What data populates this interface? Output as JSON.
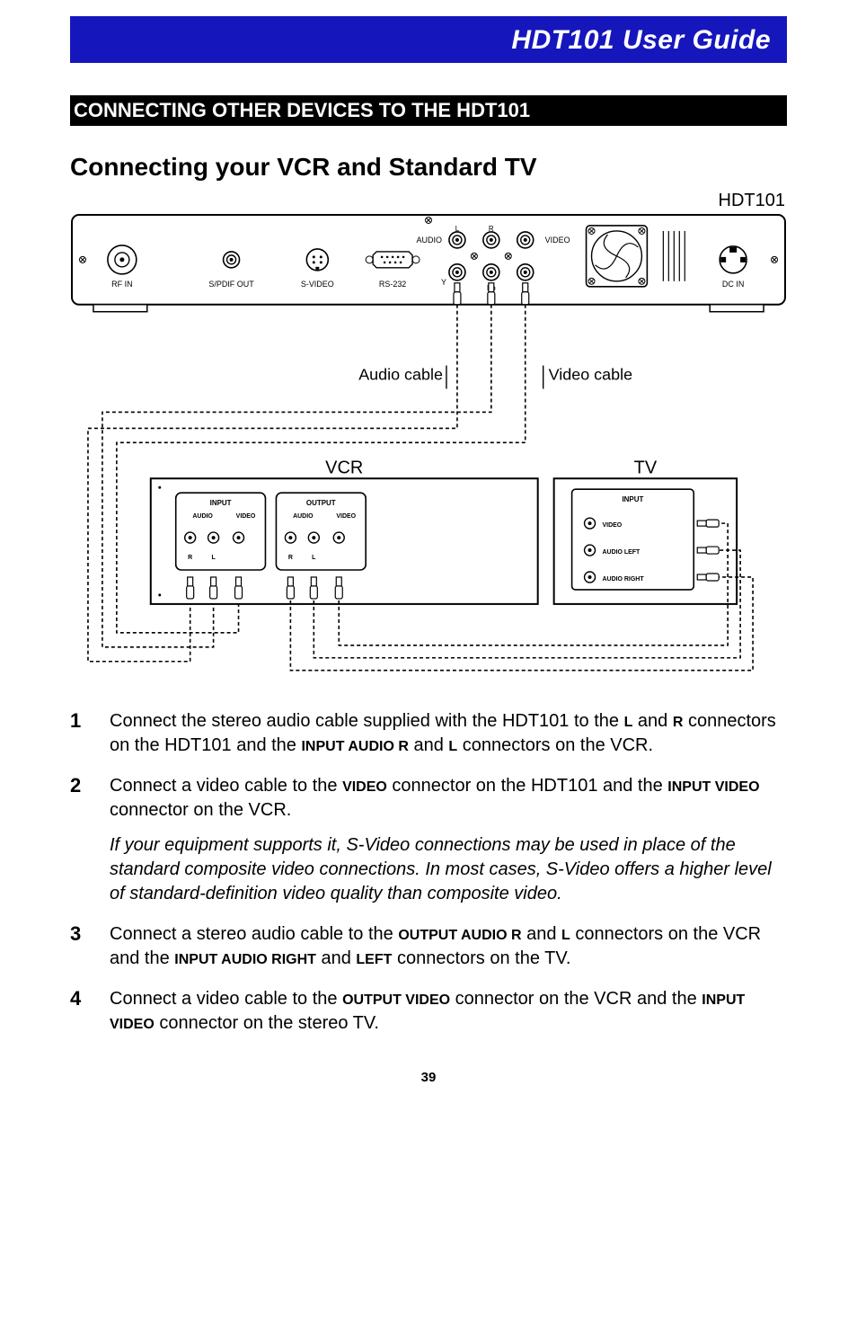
{
  "banner": {
    "title": "HDT101 User Guide"
  },
  "section_bar": "CONNECTING OTHER DEVICES TO THE HDT101",
  "subsection": "Connecting your VCR and Standard TV",
  "diagram": {
    "device_label": "HDT101",
    "rear_panel": {
      "ports": {
        "rf_in": "RF IN",
        "spdif_out": "S/PDIF OUT",
        "svideo": "S-VIDEO",
        "rs232": "RS-232",
        "audio": "AUDIO",
        "audio_l": "L",
        "audio_r": "R",
        "video": "VIDEO",
        "y": "Y",
        "pb": "Pb",
        "pr": "Pr",
        "dc_in": "DC IN"
      }
    },
    "cables": {
      "audio": "Audio cable",
      "video": "Video cable"
    },
    "vcr": {
      "label": "VCR",
      "input": {
        "title": "INPUT",
        "audio": "AUDIO",
        "video": "VIDEO",
        "r": "R",
        "l": "L"
      },
      "output": {
        "title": "OUTPUT",
        "audio": "AUDIO",
        "video": "VIDEO",
        "r": "R",
        "l": "L"
      }
    },
    "tv": {
      "label": "TV",
      "input": {
        "title": "INPUT",
        "video": "VIDEO",
        "audio_left": "AUDIO LEFT",
        "audio_right": "AUDIO RIGHT"
      }
    },
    "style": {
      "stroke": "#000000",
      "stroke_width": 1.6,
      "dash": "4 3",
      "bg": "#ffffff",
      "panel_fill": "#ffffff",
      "text_color": "#000000",
      "font_small": 9,
      "font_tiny": 7,
      "font_label": 18
    }
  },
  "steps": [
    {
      "parts": [
        {
          "t": "Connect the stereo audio cable supplied with the HDT101 to the "
        },
        {
          "sc": "L"
        },
        {
          "t": " and "
        },
        {
          "sc": "R"
        },
        {
          "t": " connectors on the HDT101 and the "
        },
        {
          "sc": "INPUT AUDIO R"
        },
        {
          "t": " and "
        },
        {
          "sc": "L"
        },
        {
          "t": " connectors on the VCR."
        }
      ]
    },
    {
      "parts": [
        {
          "t": "Connect a video cable to the "
        },
        {
          "sc": "VIDEO"
        },
        {
          "t": " connector on the HDT101 and the "
        },
        {
          "sc": "INPUT VIDEO"
        },
        {
          "t": " connector on the VCR."
        }
      ],
      "note": "If your equipment supports it, S-Video connections may be used in place of the standard composite video connections.  In most cases, S-Video offers a higher level of standard-definition video quality than composite video."
    },
    {
      "parts": [
        {
          "t": "Connect a stereo audio cable to the "
        },
        {
          "sc": "OUTPUT AUDIO R"
        },
        {
          "t": " and "
        },
        {
          "sc": "L"
        },
        {
          "t": " connectors on the VCR and the "
        },
        {
          "sc": "INPUT AUDIO RIGHT"
        },
        {
          "t": " and "
        },
        {
          "sc": "LEFT"
        },
        {
          "t": " connectors on the TV."
        }
      ]
    },
    {
      "parts": [
        {
          "t": "Connect a video cable to the "
        },
        {
          "sc": "OUTPUT VIDEO"
        },
        {
          "t": " connector on the VCR and the "
        },
        {
          "sc": "INPUT VIDEO"
        },
        {
          "t": " connector on the stereo TV."
        }
      ]
    }
  ],
  "page_number": "39"
}
